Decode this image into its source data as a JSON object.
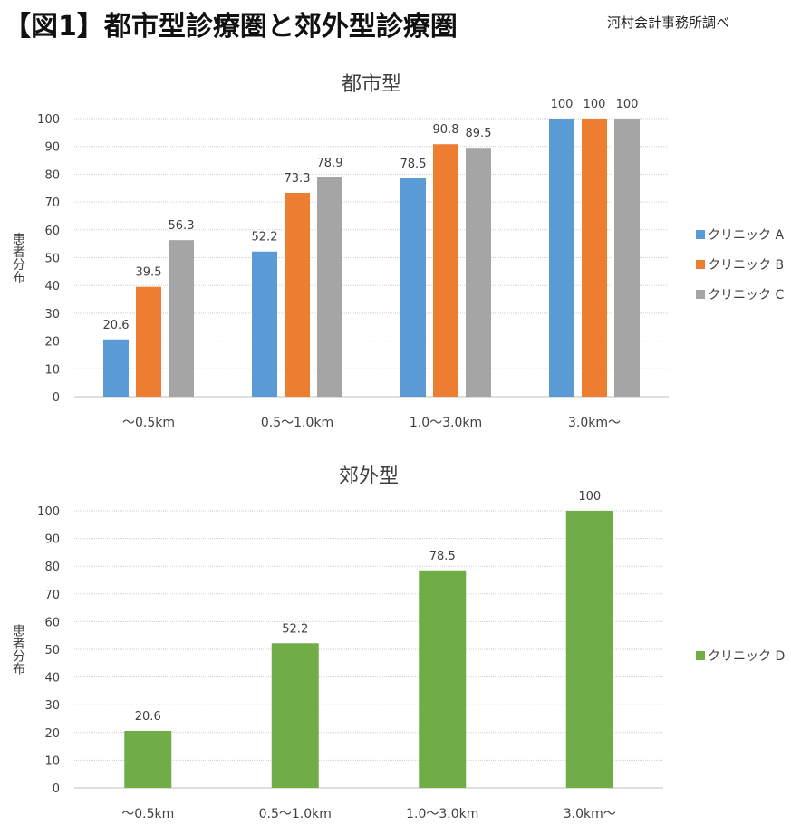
{
  "header": {
    "title": "【図1】都市型診療圏と郊外型診療圏",
    "source": "河村会計事務所調べ"
  },
  "chart_data": [
    {
      "type": "bar",
      "title": "都市型",
      "ylabel": "患者分布",
      "ylim": [
        0,
        100
      ],
      "yticks": [
        0,
        10,
        20,
        30,
        40,
        50,
        60,
        70,
        80,
        90,
        100
      ],
      "grid": true,
      "legend_position": "right",
      "categories": [
        "〜0.5km",
        "0.5〜1.0km",
        "1.0〜3.0km",
        "3.0km〜"
      ],
      "series": [
        {
          "name": "クリニック A",
          "color": "#5B9BD5",
          "values": [
            20.6,
            52.2,
            78.5,
            100
          ]
        },
        {
          "name": "クリニック B",
          "color": "#ED7D31",
          "values": [
            39.5,
            73.3,
            90.8,
            100
          ]
        },
        {
          "name": "クリニック C",
          "color": "#A5A5A5",
          "values": [
            56.3,
            78.9,
            89.5,
            100
          ]
        }
      ]
    },
    {
      "type": "bar",
      "title": "郊外型",
      "ylabel": "患者分布",
      "ylim": [
        0,
        100
      ],
      "yticks": [
        0,
        10,
        20,
        30,
        40,
        50,
        60,
        70,
        80,
        90,
        100
      ],
      "grid": true,
      "legend_position": "right",
      "categories": [
        "〜0.5km",
        "0.5〜1.0km",
        "1.0〜3.0km",
        "3.0km〜"
      ],
      "series": [
        {
          "name": "クリニック D",
          "color": "#70AD47",
          "values": [
            20.6,
            52.2,
            78.5,
            100
          ]
        }
      ]
    }
  ]
}
